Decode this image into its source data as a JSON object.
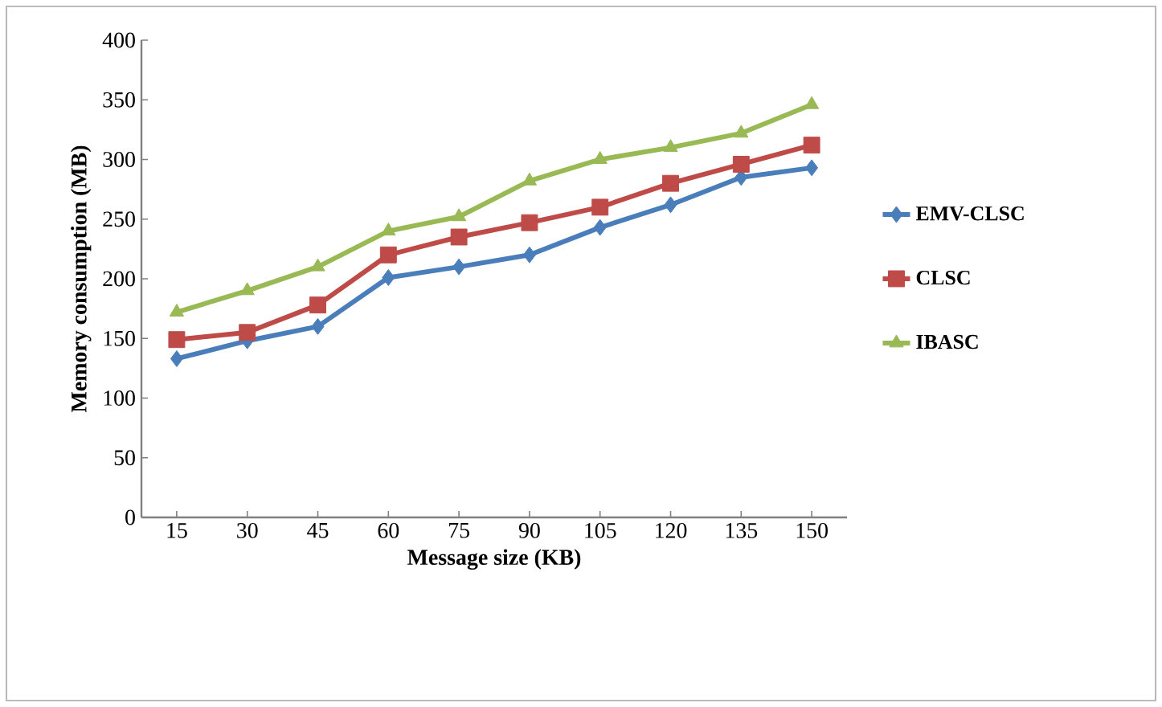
{
  "chart_data": {
    "type": "line",
    "xlabel": "Message size (KB)",
    "ylabel": "Memory consumption (MB)",
    "categories": [
      "15",
      "30",
      "45",
      "60",
      "75",
      "90",
      "105",
      "120",
      "135",
      "150"
    ],
    "ylim": [
      0,
      400
    ],
    "yticks": [
      0,
      50,
      100,
      150,
      200,
      250,
      300,
      350,
      400
    ],
    "grid": false,
    "legend": "right",
    "series": [
      {
        "name": "EMV-CLSC",
        "color": "#4a7ebb",
        "marker": "diamond",
        "values": [
          133,
          148,
          160,
          201,
          210,
          220,
          243,
          262,
          285,
          293
        ]
      },
      {
        "name": "CLSC",
        "color": "#be4b48",
        "marker": "square",
        "values": [
          149,
          155,
          178,
          220,
          235,
          247,
          260,
          280,
          296,
          312
        ]
      },
      {
        "name": "IBASC",
        "color": "#98b954",
        "marker": "triangle",
        "values": [
          172,
          190,
          210,
          240,
          252,
          282,
          300,
          310,
          322,
          346
        ]
      }
    ]
  }
}
